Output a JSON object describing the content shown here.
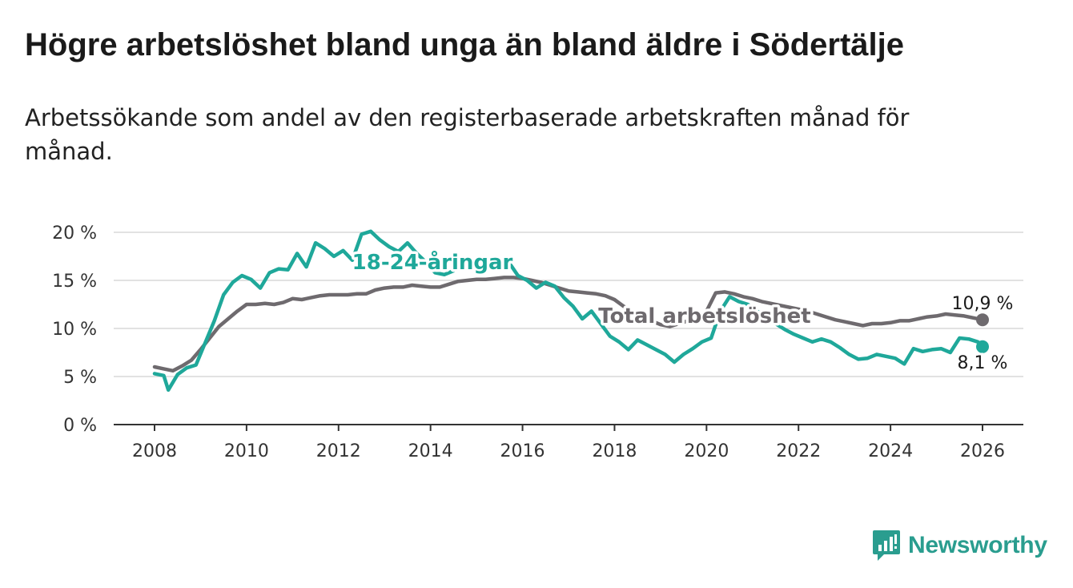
{
  "chart_data": {
    "type": "line",
    "title": "Högre arbetslöshet bland unga än bland äldre i Södertälje",
    "subtitle": "Arbetssökande som andel av den registerbaserade arbetskraften månad för månad.",
    "xlabel": "",
    "ylabel": "",
    "xlim": [
      2007.5,
      2026.9
    ],
    "ylim": [
      0,
      20
    ],
    "x_ticks": [
      2008,
      2010,
      2012,
      2014,
      2016,
      2018,
      2020,
      2022,
      2024,
      2026
    ],
    "y_ticks": [
      0,
      5,
      10,
      15,
      20
    ],
    "y_tick_labels": [
      "0 %",
      "5 %",
      "10 %",
      "15 %",
      "20 %"
    ],
    "grid": "horizontal",
    "series": [
      {
        "name": "Total arbetslöshet",
        "label": "Total arbetslöshet",
        "color": "#6e6a6e",
        "end_label": "10,9 %",
        "x": [
          2008.0,
          2008.2,
          2008.4,
          2008.6,
          2008.8,
          2009.0,
          2009.2,
          2009.4,
          2009.6,
          2009.8,
          2010.0,
          2010.2,
          2010.4,
          2010.6,
          2010.8,
          2011.0,
          2011.2,
          2011.4,
          2011.6,
          2011.8,
          2012.0,
          2012.2,
          2012.4,
          2012.6,
          2012.8,
          2013.0,
          2013.2,
          2013.4,
          2013.6,
          2013.8,
          2014.0,
          2014.2,
          2014.4,
          2014.6,
          2014.8,
          2015.0,
          2015.2,
          2015.4,
          2015.6,
          2015.8,
          2016.0,
          2016.2,
          2016.4,
          2016.6,
          2016.8,
          2017.0,
          2017.2,
          2017.4,
          2017.6,
          2017.8,
          2018.0,
          2018.2,
          2018.4,
          2018.6,
          2018.8,
          2019.0,
          2019.2,
          2019.4,
          2019.6,
          2019.8,
          2020.0,
          2020.2,
          2020.4,
          2020.6,
          2020.8,
          2021.0,
          2021.2,
          2021.4,
          2021.6,
          2021.8,
          2022.0,
          2022.2,
          2022.4,
          2022.6,
          2022.8,
          2023.0,
          2023.2,
          2023.4,
          2023.6,
          2023.8,
          2024.0,
          2024.2,
          2024.4,
          2024.6,
          2024.8,
          2025.0,
          2025.2,
          2025.4,
          2025.6,
          2025.8,
          2026.0
        ],
        "values": [
          6.0,
          5.8,
          5.6,
          6.1,
          6.7,
          7.8,
          9.0,
          10.2,
          11.0,
          11.8,
          12.5,
          12.5,
          12.6,
          12.5,
          12.7,
          13.1,
          13.0,
          13.2,
          13.4,
          13.5,
          13.5,
          13.5,
          13.6,
          13.6,
          14.0,
          14.2,
          14.3,
          14.3,
          14.5,
          14.4,
          14.3,
          14.3,
          14.6,
          14.9,
          15.0,
          15.1,
          15.1,
          15.2,
          15.3,
          15.3,
          15.2,
          15.0,
          14.8,
          14.5,
          14.2,
          13.9,
          13.8,
          13.7,
          13.6,
          13.4,
          13.0,
          12.3,
          11.8,
          11.3,
          10.8,
          10.4,
          10.2,
          10.5,
          10.8,
          11.2,
          11.8,
          13.7,
          13.8,
          13.6,
          13.3,
          13.1,
          12.8,
          12.6,
          12.4,
          12.2,
          12.0,
          11.8,
          11.5,
          11.2,
          10.9,
          10.7,
          10.5,
          10.3,
          10.5,
          10.5,
          10.6,
          10.8,
          10.8,
          11.0,
          11.2,
          11.3,
          11.5,
          11.4,
          11.3,
          11.1,
          10.9
        ]
      },
      {
        "name": "18-24-åringar",
        "label": "18-24-åringar",
        "color": "#1fa89a",
        "end_label": "8,1 %",
        "x": [
          2008.0,
          2008.2,
          2008.3,
          2008.5,
          2008.7,
          2008.9,
          2009.1,
          2009.3,
          2009.5,
          2009.7,
          2009.9,
          2010.1,
          2010.3,
          2010.5,
          2010.7,
          2010.9,
          2011.1,
          2011.3,
          2011.5,
          2011.7,
          2011.9,
          2012.1,
          2012.3,
          2012.5,
          2012.7,
          2012.9,
          2013.1,
          2013.3,
          2013.5,
          2013.7,
          2013.9,
          2014.1,
          2014.3,
          2014.5,
          2014.7,
          2014.9,
          2015.1,
          2015.3,
          2015.5,
          2015.7,
          2015.9,
          2016.1,
          2016.3,
          2016.5,
          2016.7,
          2016.9,
          2017.1,
          2017.3,
          2017.5,
          2017.7,
          2017.9,
          2018.1,
          2018.3,
          2018.5,
          2018.7,
          2018.9,
          2019.1,
          2019.3,
          2019.5,
          2019.7,
          2019.9,
          2020.1,
          2020.3,
          2020.5,
          2020.7,
          2020.9,
          2021.1,
          2021.3,
          2021.5,
          2021.7,
          2021.9,
          2022.1,
          2022.3,
          2022.5,
          2022.7,
          2022.9,
          2023.1,
          2023.3,
          2023.5,
          2023.7,
          2023.9,
          2024.1,
          2024.3,
          2024.5,
          2024.7,
          2024.9,
          2025.1,
          2025.3,
          2025.5,
          2025.7,
          2025.9,
          2026.0
        ],
        "values": [
          5.3,
          5.1,
          3.6,
          5.2,
          5.9,
          6.2,
          8.5,
          10.8,
          13.5,
          14.8,
          15.5,
          15.1,
          14.2,
          15.8,
          16.2,
          16.1,
          17.8,
          16.4,
          18.9,
          18.3,
          17.5,
          18.1,
          17.1,
          19.8,
          20.1,
          19.2,
          18.5,
          18.0,
          18.9,
          17.8,
          16.9,
          15.8,
          15.6,
          16.0,
          16.5,
          16.8,
          16.5,
          16.8,
          17.0,
          16.9,
          15.5,
          15.0,
          14.2,
          14.8,
          14.4,
          13.2,
          12.3,
          11.0,
          11.8,
          10.5,
          9.2,
          8.6,
          7.8,
          8.8,
          8.3,
          7.8,
          7.3,
          6.5,
          7.3,
          7.9,
          8.6,
          9.0,
          11.8,
          13.3,
          12.8,
          12.5,
          11.8,
          11.0,
          10.5,
          9.9,
          9.4,
          9.0,
          8.6,
          8.9,
          8.6,
          8.0,
          7.3,
          6.8,
          6.9,
          7.3,
          7.1,
          6.9,
          6.3,
          7.9,
          7.6,
          7.8,
          7.9,
          7.5,
          9.0,
          8.9,
          8.6,
          8.1
        ]
      }
    ]
  },
  "branding": {
    "name": "Newsworthy",
    "icon": "bar-chart-logo-icon",
    "color": "#2a9d8f"
  }
}
